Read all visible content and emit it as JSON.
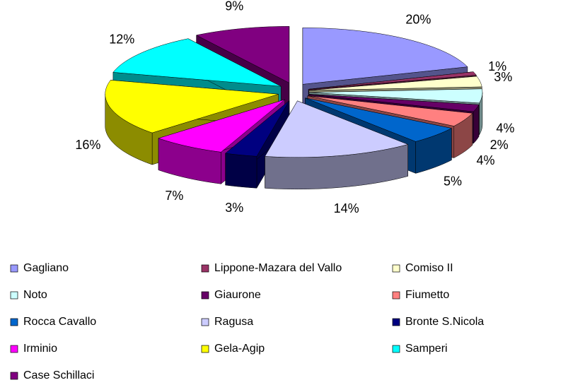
{
  "chart_data": {
    "type": "pie3d",
    "categories": [
      "Gagliano",
      "Lippone-Mazara del Vallo",
      "Comiso II",
      "Noto",
      "Giaurone",
      "Fiumetto",
      "Rocca Cavallo",
      "Ragusa",
      "Bronte S.Nicola",
      "Irminio",
      "Gela-Agip",
      "Samperi",
      "Case  Schillaci"
    ],
    "values": [
      20,
      1,
      3,
      4,
      2,
      4,
      5,
      14,
      3,
      7,
      16,
      12,
      9
    ],
    "value_labels": [
      "20%",
      "1%",
      "3%",
      "4%",
      "2%",
      "4%",
      "5%",
      "14%",
      "3%",
      "7%",
      "16%",
      "12%",
      "9%"
    ],
    "colors": [
      "#9999ff",
      "#993366",
      "#ffffcc",
      "#ccffff",
      "#660066",
      "#ff8080",
      "#0066cc",
      "#ccccff",
      "#000080",
      "#ff00ff",
      "#ffff00",
      "#00ffff",
      "#800080"
    ],
    "legend": "bottom"
  }
}
